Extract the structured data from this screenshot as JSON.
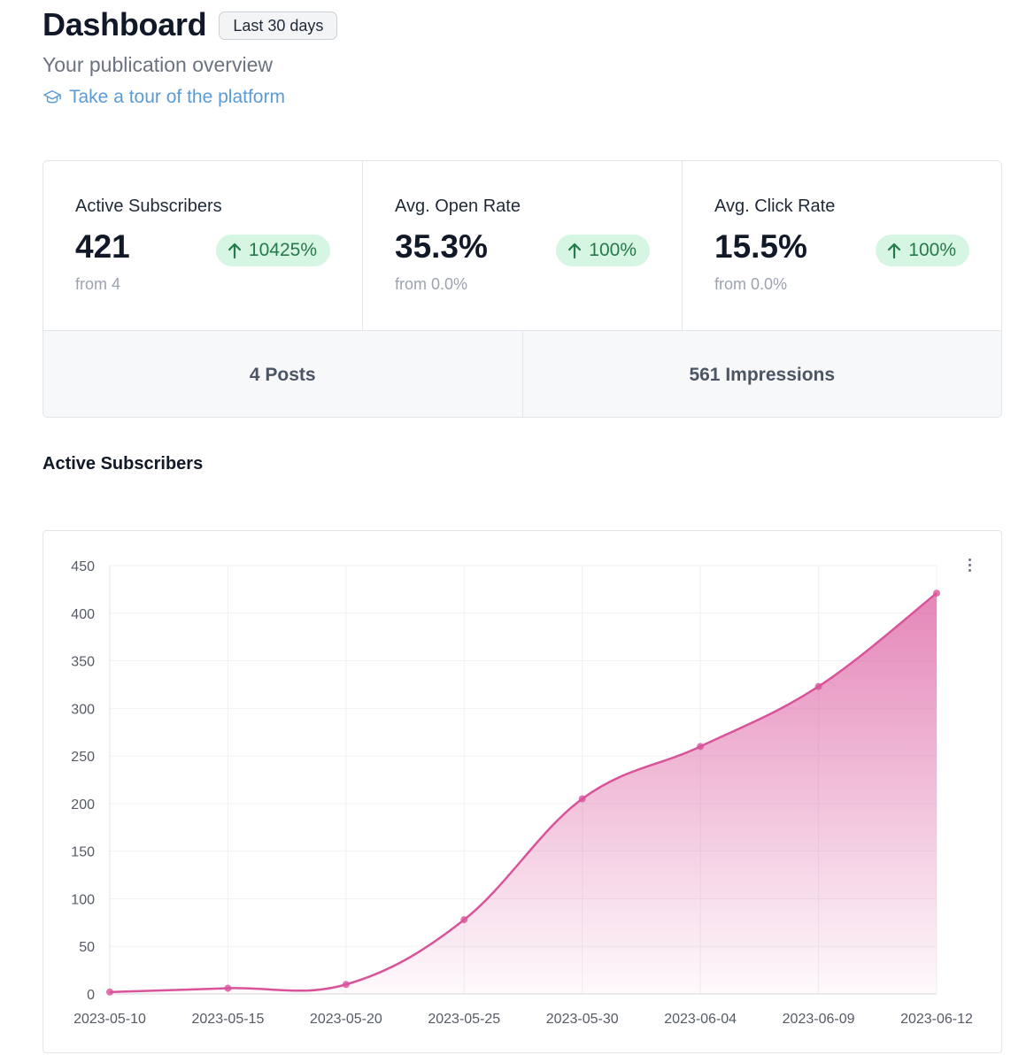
{
  "header": {
    "title": "Dashboard",
    "range_button": "Last 30 days",
    "subtitle": "Your publication overview",
    "tour_link": "Take a tour of the platform"
  },
  "stats": [
    {
      "label": "Active Subscribers",
      "value": "421",
      "change": "10425%",
      "from": "from 4"
    },
    {
      "label": "Avg. Open Rate",
      "value": "35.3%",
      "change": "100%",
      "from": "from 0.0%"
    },
    {
      "label": "Avg. Click Rate",
      "value": "15.5%",
      "change": "100%",
      "from": "from 0.0%"
    }
  ],
  "summary": {
    "posts": "4 Posts",
    "impressions": "561 Impressions"
  },
  "section_title": "Active Subscribers",
  "colors": {
    "accent_pink": "#d9539a",
    "badge_bg": "#d7f5e3",
    "badge_text": "#247a4a",
    "link": "#5b9bd5"
  },
  "icons": {
    "tour": "graduation-cap-icon",
    "badge": "arrow-up-icon",
    "menu": "more-vertical-icon"
  },
  "chart_data": {
    "type": "area",
    "x": [
      "2023-05-10",
      "2023-05-15",
      "2023-05-20",
      "2023-05-25",
      "2023-05-30",
      "2023-06-04",
      "2023-06-09",
      "2023-06-12"
    ],
    "series": [
      {
        "values": [
          2,
          6,
          10,
          78,
          205,
          260,
          323,
          421
        ]
      }
    ],
    "ylim": [
      0,
      450
    ],
    "yticks": [
      0,
      50,
      100,
      150,
      200,
      250,
      300,
      350,
      400,
      450
    ],
    "grid": true,
    "title": "",
    "xlabel": "",
    "ylabel": ""
  }
}
